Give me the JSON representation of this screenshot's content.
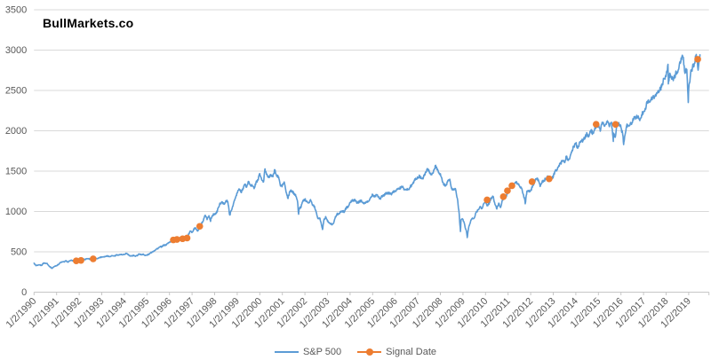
{
  "title": "BullMarkets.co",
  "colors": {
    "sp500": "#5B9BD5",
    "signal": "#ED7D31",
    "gridline": "#D9D9D9",
    "axis_line": "#C6C6C6",
    "tick_text": "#595959",
    "title_text": "#000000",
    "background": "#FFFFFF"
  },
  "chart_data": {
    "type": "line",
    "title": "BullMarkets.co",
    "xlabel": "",
    "ylabel": "",
    "grid": "horizontal",
    "legend_position": "bottom-center",
    "ylim": [
      0,
      3500
    ],
    "xlim_years": [
      1990,
      2019.6
    ],
    "y_ticks": [
      0,
      500,
      1000,
      1500,
      2000,
      2500,
      3000,
      3500
    ],
    "x_tick_labels": [
      "1/2/1990",
      "1/2/1991",
      "1/2/1992",
      "1/2/1993",
      "1/2/1994",
      "1/2/1995",
      "1/2/1996",
      "1/2/1997",
      "1/2/1998",
      "1/2/1999",
      "1/2/2000",
      "1/2/2001",
      "1/2/2002",
      "1/2/2003",
      "1/2/2004",
      "1/2/2005",
      "1/2/2006",
      "1/2/2007",
      "1/2/2008",
      "1/2/2009",
      "1/2/2010",
      "1/2/2011",
      "1/2/2012",
      "1/2/2013",
      "1/2/2014",
      "1/2/2015",
      "1/2/2016",
      "1/2/2017",
      "1/2/2018",
      "1/2/2019"
    ],
    "series": [
      {
        "name": "S&P 500",
        "type": "line",
        "color": "#5B9BD5",
        "start_year": 1990,
        "interval": "monthly-closes",
        "values": [
          359,
          329,
          332,
          339,
          331,
          361,
          358,
          356,
          323,
          306,
          304,
          322,
          330,
          344,
          367,
          375,
          375,
          390,
          371,
          388,
          395,
          388,
          392,
          375,
          417,
          409,
          413,
          404,
          415,
          415,
          408,
          424,
          414,
          418,
          419,
          431,
          436,
          439,
          443,
          452,
          440,
          450,
          451,
          448,
          464,
          459,
          468,
          462,
          466,
          482,
          467,
          446,
          451,
          457,
          444,
          458,
          475,
          463,
          472,
          454,
          459,
          470,
          487,
          501,
          515,
          533,
          545,
          562,
          562,
          584,
          582,
          605,
          616,
          636,
          640,
          646,
          654,
          669,
          671,
          640,
          652,
          687,
          705,
          757,
          741,
          786,
          791,
          757,
          801,
          848,
          885,
          954,
          899,
          947,
          915,
          955,
          970,
          980,
          1049,
          1102,
          1112,
          1091,
          1134,
          1121,
          957,
          1017,
          1099,
          1164,
          1229,
          1280,
          1238,
          1286,
          1335,
          1302,
          1373,
          1329,
          1320,
          1283,
          1363,
          1389,
          1469,
          1394,
          1366,
          1499,
          1452,
          1421,
          1455,
          1431,
          1518,
          1437,
          1429,
          1315,
          1320,
          1366,
          1240,
          1160,
          1249,
          1256,
          1224,
          1211,
          1134,
          1041,
          1060,
          1139,
          1148,
          1130,
          1107,
          1147,
          1077,
          1067,
          990,
          911,
          916,
          815,
          886,
          936,
          880,
          856,
          841,
          848,
          917,
          964,
          975,
          990,
          1008,
          996,
          1051,
          1058,
          1112,
          1131,
          1145,
          1126,
          1107,
          1121,
          1141,
          1102,
          1104,
          1114,
          1130,
          1174,
          1212,
          1181,
          1204,
          1181,
          1157,
          1192,
          1191,
          1234,
          1220,
          1229,
          1207,
          1249,
          1248,
          1280,
          1281,
          1295,
          1311,
          1270,
          1270,
          1277,
          1304,
          1336,
          1378,
          1401,
          1418,
          1438,
          1407,
          1421,
          1482,
          1531,
          1503,
          1455,
          1474,
          1527,
          1549,
          1481,
          1468,
          1379,
          1331,
          1323,
          1386,
          1400,
          1280,
          1267,
          1283,
          1166,
          969,
          896,
          903,
          826,
          735,
          798,
          873,
          919,
          919,
          987,
          1021,
          1057,
          1036,
          1096,
          1115,
          1074,
          1104,
          1169,
          1187,
          1089,
          1031,
          1102,
          1049,
          1141,
          1183,
          1181,
          1258,
          1286,
          1327,
          1326,
          1364,
          1345,
          1321,
          1292,
          1219,
          1131,
          1253,
          1247,
          1258,
          1312,
          1366,
          1408,
          1398,
          1310,
          1362,
          1379,
          1407,
          1441,
          1412,
          1416,
          1426,
          1498,
          1515,
          1569,
          1598,
          1631,
          1606,
          1686,
          1633,
          1682,
          1757,
          1806,
          1848,
          1783,
          1859,
          1872,
          1884,
          1924,
          1960,
          1931,
          2003,
          1972,
          2018,
          2068,
          2059,
          1995,
          2105,
          2068,
          2086,
          2107,
          2063,
          2104,
          1972,
          1920,
          2079,
          2080,
          2044,
          1940,
          1932,
          2060,
          2065,
          2097,
          2099,
          2174,
          2171,
          2168,
          2126,
          2199,
          2239,
          2279,
          2364,
          2363,
          2384,
          2412,
          2423,
          2470,
          2472,
          2519,
          2575,
          2648,
          2674,
          2824,
          2714,
          2641,
          2648,
          2705,
          2718,
          2816,
          2902,
          2914,
          2712,
          2760,
          2507,
          2704,
          2784,
          2834,
          2946,
          2752,
          2942
        ],
        "intramonth_extremes": [
          [
            1990.79,
            295
          ],
          [
            1997.82,
            877
          ],
          [
            2000.23,
            1527
          ],
          [
            2001.72,
            966
          ],
          [
            2002.78,
            777
          ],
          [
            2007.78,
            1565
          ],
          [
            2008.89,
            752
          ],
          [
            2009.19,
            677
          ],
          [
            2011.76,
            1099
          ],
          [
            2015.66,
            1868
          ],
          [
            2016.12,
            1829
          ],
          [
            2018.1,
            2581
          ],
          [
            2018.98,
            2351
          ]
        ]
      },
      {
        "name": "Signal Date",
        "type": "scatter",
        "color": "#ED7D31",
        "points": [
          [
            1991.87,
            388
          ],
          [
            1992.08,
            394
          ],
          [
            1992.62,
            413
          ],
          [
            1996.17,
            647
          ],
          [
            1996.33,
            653
          ],
          [
            1996.58,
            662
          ],
          [
            1996.78,
            671
          ],
          [
            1997.34,
            816
          ],
          [
            2010.07,
            1143
          ],
          [
            2010.79,
            1183
          ],
          [
            2010.97,
            1257
          ],
          [
            2011.17,
            1319
          ],
          [
            2012.06,
            1369
          ],
          [
            2012.82,
            1404
          ],
          [
            2014.9,
            2081
          ],
          [
            2015.76,
            2079
          ],
          [
            2019.4,
            2886
          ]
        ]
      }
    ]
  }
}
